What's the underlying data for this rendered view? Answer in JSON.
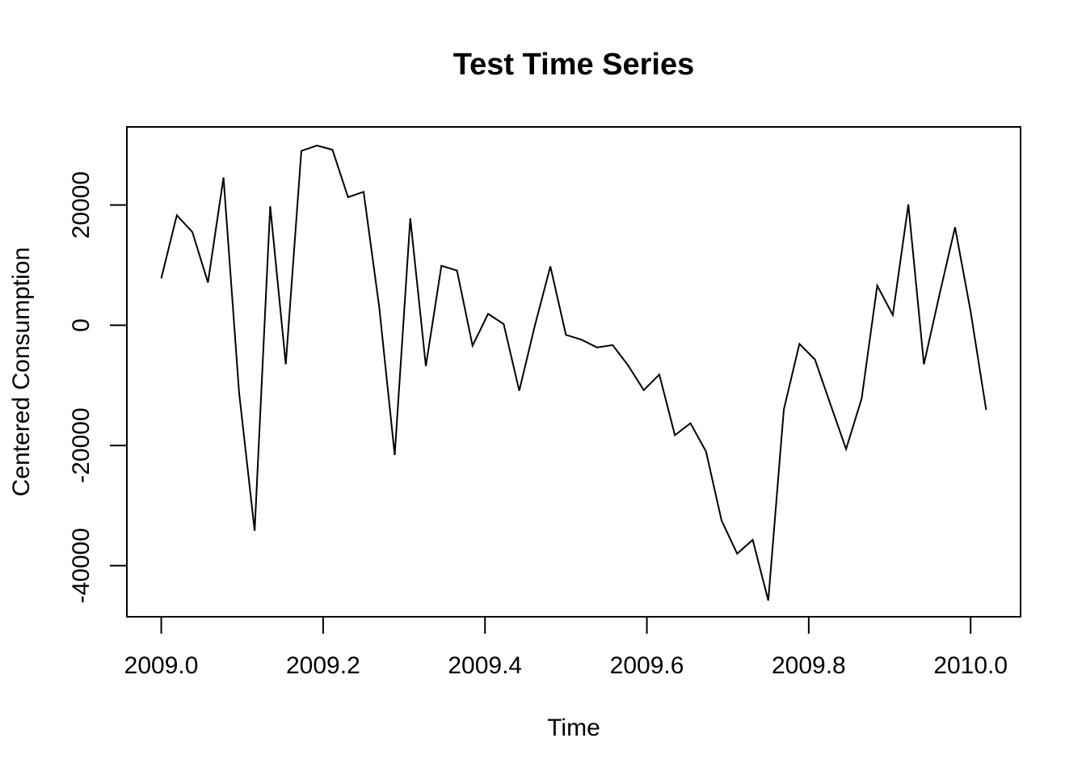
{
  "chart_data": {
    "type": "line",
    "title": "Test Time Series",
    "xlabel": "Time",
    "ylabel": "Centered Consumption",
    "xlim": [
      2008.9575,
      2010.0617
    ],
    "ylim": [
      -48500,
      33000
    ],
    "x_ticks": [
      2009.0,
      2009.2,
      2009.4,
      2009.6,
      2009.8,
      2010.0
    ],
    "x_tick_labels": [
      "2009.0",
      "2009.2",
      "2009.4",
      "2009.6",
      "2009.8",
      "2010.0"
    ],
    "y_ticks": [
      -40000,
      -20000,
      0,
      20000
    ],
    "y_tick_labels": [
      "-40000",
      "-20000",
      "0",
      "20000"
    ],
    "grid": false,
    "series": [
      {
        "start": 2009.0,
        "frequency": 52,
        "values": [
          7800,
          18300,
          15500,
          7100,
          24600,
          -11200,
          -34200,
          19800,
          -6500,
          29000,
          29900,
          29200,
          21300,
          22200,
          3100,
          -21600,
          17800,
          -6800,
          9900,
          9100,
          -3400,
          1900,
          200,
          -10900,
          -100,
          9800,
          -1600,
          -2400,
          -3700,
          -3300,
          -6700,
          -10800,
          -8200,
          -18300,
          -16300,
          -21000,
          -32500,
          -38000,
          -35700,
          -45800,
          -14000,
          -3100,
          -5700,
          -13200,
          -20600,
          -12200,
          6600,
          1700,
          20100,
          -6500,
          5100,
          16300,
          2300,
          -14100
        ]
      }
    ]
  }
}
